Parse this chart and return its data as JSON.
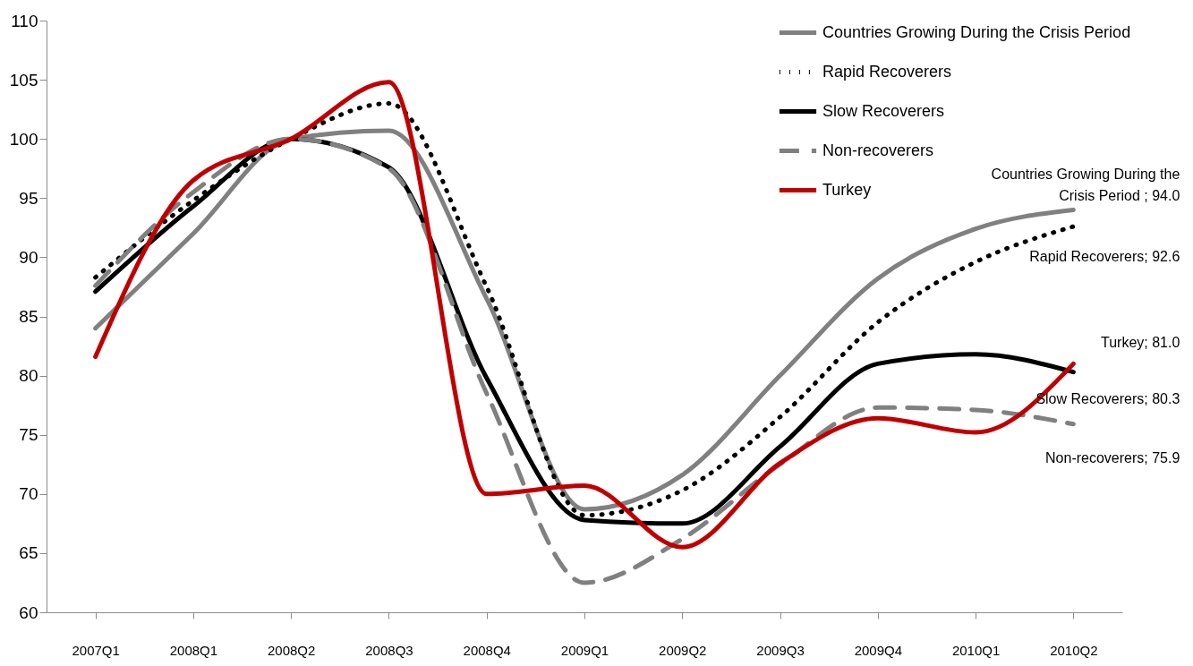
{
  "chart_data": {
    "type": "line",
    "categories": [
      "2007Q1",
      "2008Q1",
      "2008Q2",
      "2008Q3",
      "2008Q4",
      "2009Q1",
      "2009Q2",
      "2009Q3",
      "2009Q4",
      "2010Q1",
      "2010Q2"
    ],
    "ylim": [
      60,
      110
    ],
    "yticks": [
      60,
      65,
      70,
      75,
      80,
      85,
      90,
      95,
      100,
      105,
      110
    ],
    "grid": false,
    "legend": "top right",
    "series": [
      {
        "name": "Countries Growing During the Crisis Period",
        "color": "#808080",
        "line_style": "solid",
        "values": [
          84.0,
          92.0,
          100.0,
          100.7,
          86.5,
          68.7,
          71.6,
          80.0,
          88.2,
          92.4,
          94.0
        ]
      },
      {
        "name": "Rapid Recoverers",
        "color": "#000000",
        "line_style": "dotted",
        "values": [
          88.3,
          94.8,
          100.0,
          103.0,
          87.5,
          68.2,
          70.3,
          76.5,
          84.5,
          89.6,
          92.6
        ]
      },
      {
        "name": "Slow Recoverers",
        "color": "#000000",
        "line_style": "solid",
        "values": [
          87.1,
          94.3,
          100.0,
          97.6,
          79.8,
          67.8,
          67.5,
          74.0,
          81.0,
          81.8,
          80.3
        ]
      },
      {
        "name": "Non-recoverers",
        "color": "#808080",
        "line_style": "dashed",
        "values": [
          87.6,
          95.5,
          100.0,
          97.5,
          78.5,
          62.5,
          66.2,
          72.5,
          77.3,
          77.1,
          75.9
        ]
      },
      {
        "name": "Turkey",
        "color": "#c00000",
        "line_style": "solid",
        "values": [
          81.6,
          96.5,
          100.0,
          104.8,
          70.0,
          70.7,
          65.5,
          72.6,
          76.4,
          75.2,
          81.0
        ]
      }
    ],
    "annotations": [
      {
        "text": "Countries Growing During the Crisis Period ;  94.0",
        "x": "2010Q2",
        "y": 94.0
      },
      {
        "text": "Rapid Recoverers; 92.6",
        "x": "2010Q2",
        "y": 92.6
      },
      {
        "text": "Slow Recoverers;  80.3",
        "x": "2010Q2",
        "y": 80.3
      },
      {
        "text": "Non-recoverers; 75.9",
        "x": "2010Q2",
        "y": 75.9
      },
      {
        "text": "Turkey; 81.0",
        "x": "2010Q2",
        "y": 81.0
      }
    ]
  }
}
